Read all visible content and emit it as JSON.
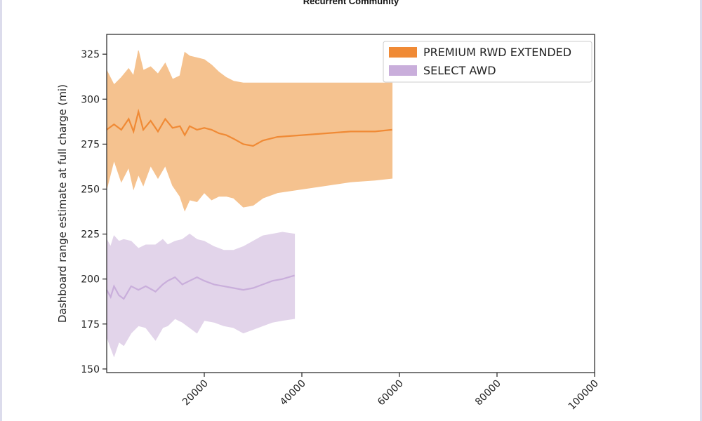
{
  "page": {
    "header_title": "Recurrent Community"
  },
  "chart_data": {
    "type": "area",
    "xlabel": "",
    "ylabel": "Dashboard range estimate at full charge (mi)",
    "xlim": [
      0,
      100000
    ],
    "ylim": [
      148,
      336
    ],
    "xticks": [
      20000,
      40000,
      60000,
      80000,
      100000
    ],
    "yticks": [
      150,
      175,
      200,
      225,
      250,
      275,
      300,
      325
    ],
    "grid": false,
    "legend": "top-right",
    "series": [
      {
        "name": "PREMIUM RWD EXTENDED",
        "color": "#f08a35",
        "band_color": "#f5c28f",
        "x": [
          0,
          1500,
          3000,
          4500,
          5500,
          6500,
          7500,
          9000,
          10500,
          12000,
          13500,
          15000,
          16000,
          17000,
          18500,
          20000,
          21500,
          23000,
          24500,
          26000,
          28000,
          30000,
          32000,
          35000,
          40000,
          45000,
          50000,
          55000,
          58500
        ],
        "mean": [
          283,
          286,
          283,
          289,
          282,
          293,
          283,
          288,
          282,
          289,
          284,
          285,
          280,
          285,
          283,
          284,
          283,
          281,
          280,
          278,
          275,
          274,
          277,
          279,
          280,
          281,
          282,
          282,
          283
        ],
        "upper": [
          316,
          308,
          312,
          317,
          313,
          327,
          316,
          318,
          314,
          320,
          311,
          313,
          326,
          324,
          323,
          322,
          319,
          315,
          312,
          310,
          309,
          309,
          309,
          309,
          309,
          309,
          309,
          309,
          309
        ],
        "lower": [
          250,
          266,
          254,
          262,
          250,
          258,
          252,
          263,
          256,
          263,
          252,
          246,
          238,
          244,
          243,
          248,
          244,
          246,
          246,
          245,
          240,
          241,
          245,
          248,
          250,
          252,
          254,
          255,
          256
        ]
      },
      {
        "name": "SELECT AWD",
        "color": "#c9aedb",
        "band_color": "#e2d4ea",
        "x": [
          0,
          800,
          1500,
          2500,
          3500,
          5000,
          6500,
          8000,
          10000,
          11500,
          12500,
          14000,
          15500,
          17000,
          18500,
          20000,
          22000,
          24000,
          26000,
          28000,
          30000,
          32000,
          34000,
          36000,
          38500
        ],
        "mean": [
          194,
          190,
          196,
          191,
          189,
          196,
          194,
          196,
          193,
          197,
          199,
          201,
          197,
          199,
          201,
          199,
          197,
          196,
          195,
          194,
          195,
          197,
          199,
          200,
          202
        ],
        "upper": [
          222,
          218,
          224,
          221,
          222,
          221,
          217,
          219,
          219,
          222,
          219,
          221,
          222,
          225,
          222,
          221,
          218,
          216,
          216,
          218,
          221,
          224,
          225,
          226,
          225
        ],
        "lower": [
          168,
          162,
          157,
          165,
          163,
          170,
          174,
          173,
          166,
          173,
          174,
          178,
          176,
          173,
          170,
          177,
          176,
          174,
          173,
          170,
          172,
          174,
          176,
          177,
          178
        ]
      }
    ]
  }
}
